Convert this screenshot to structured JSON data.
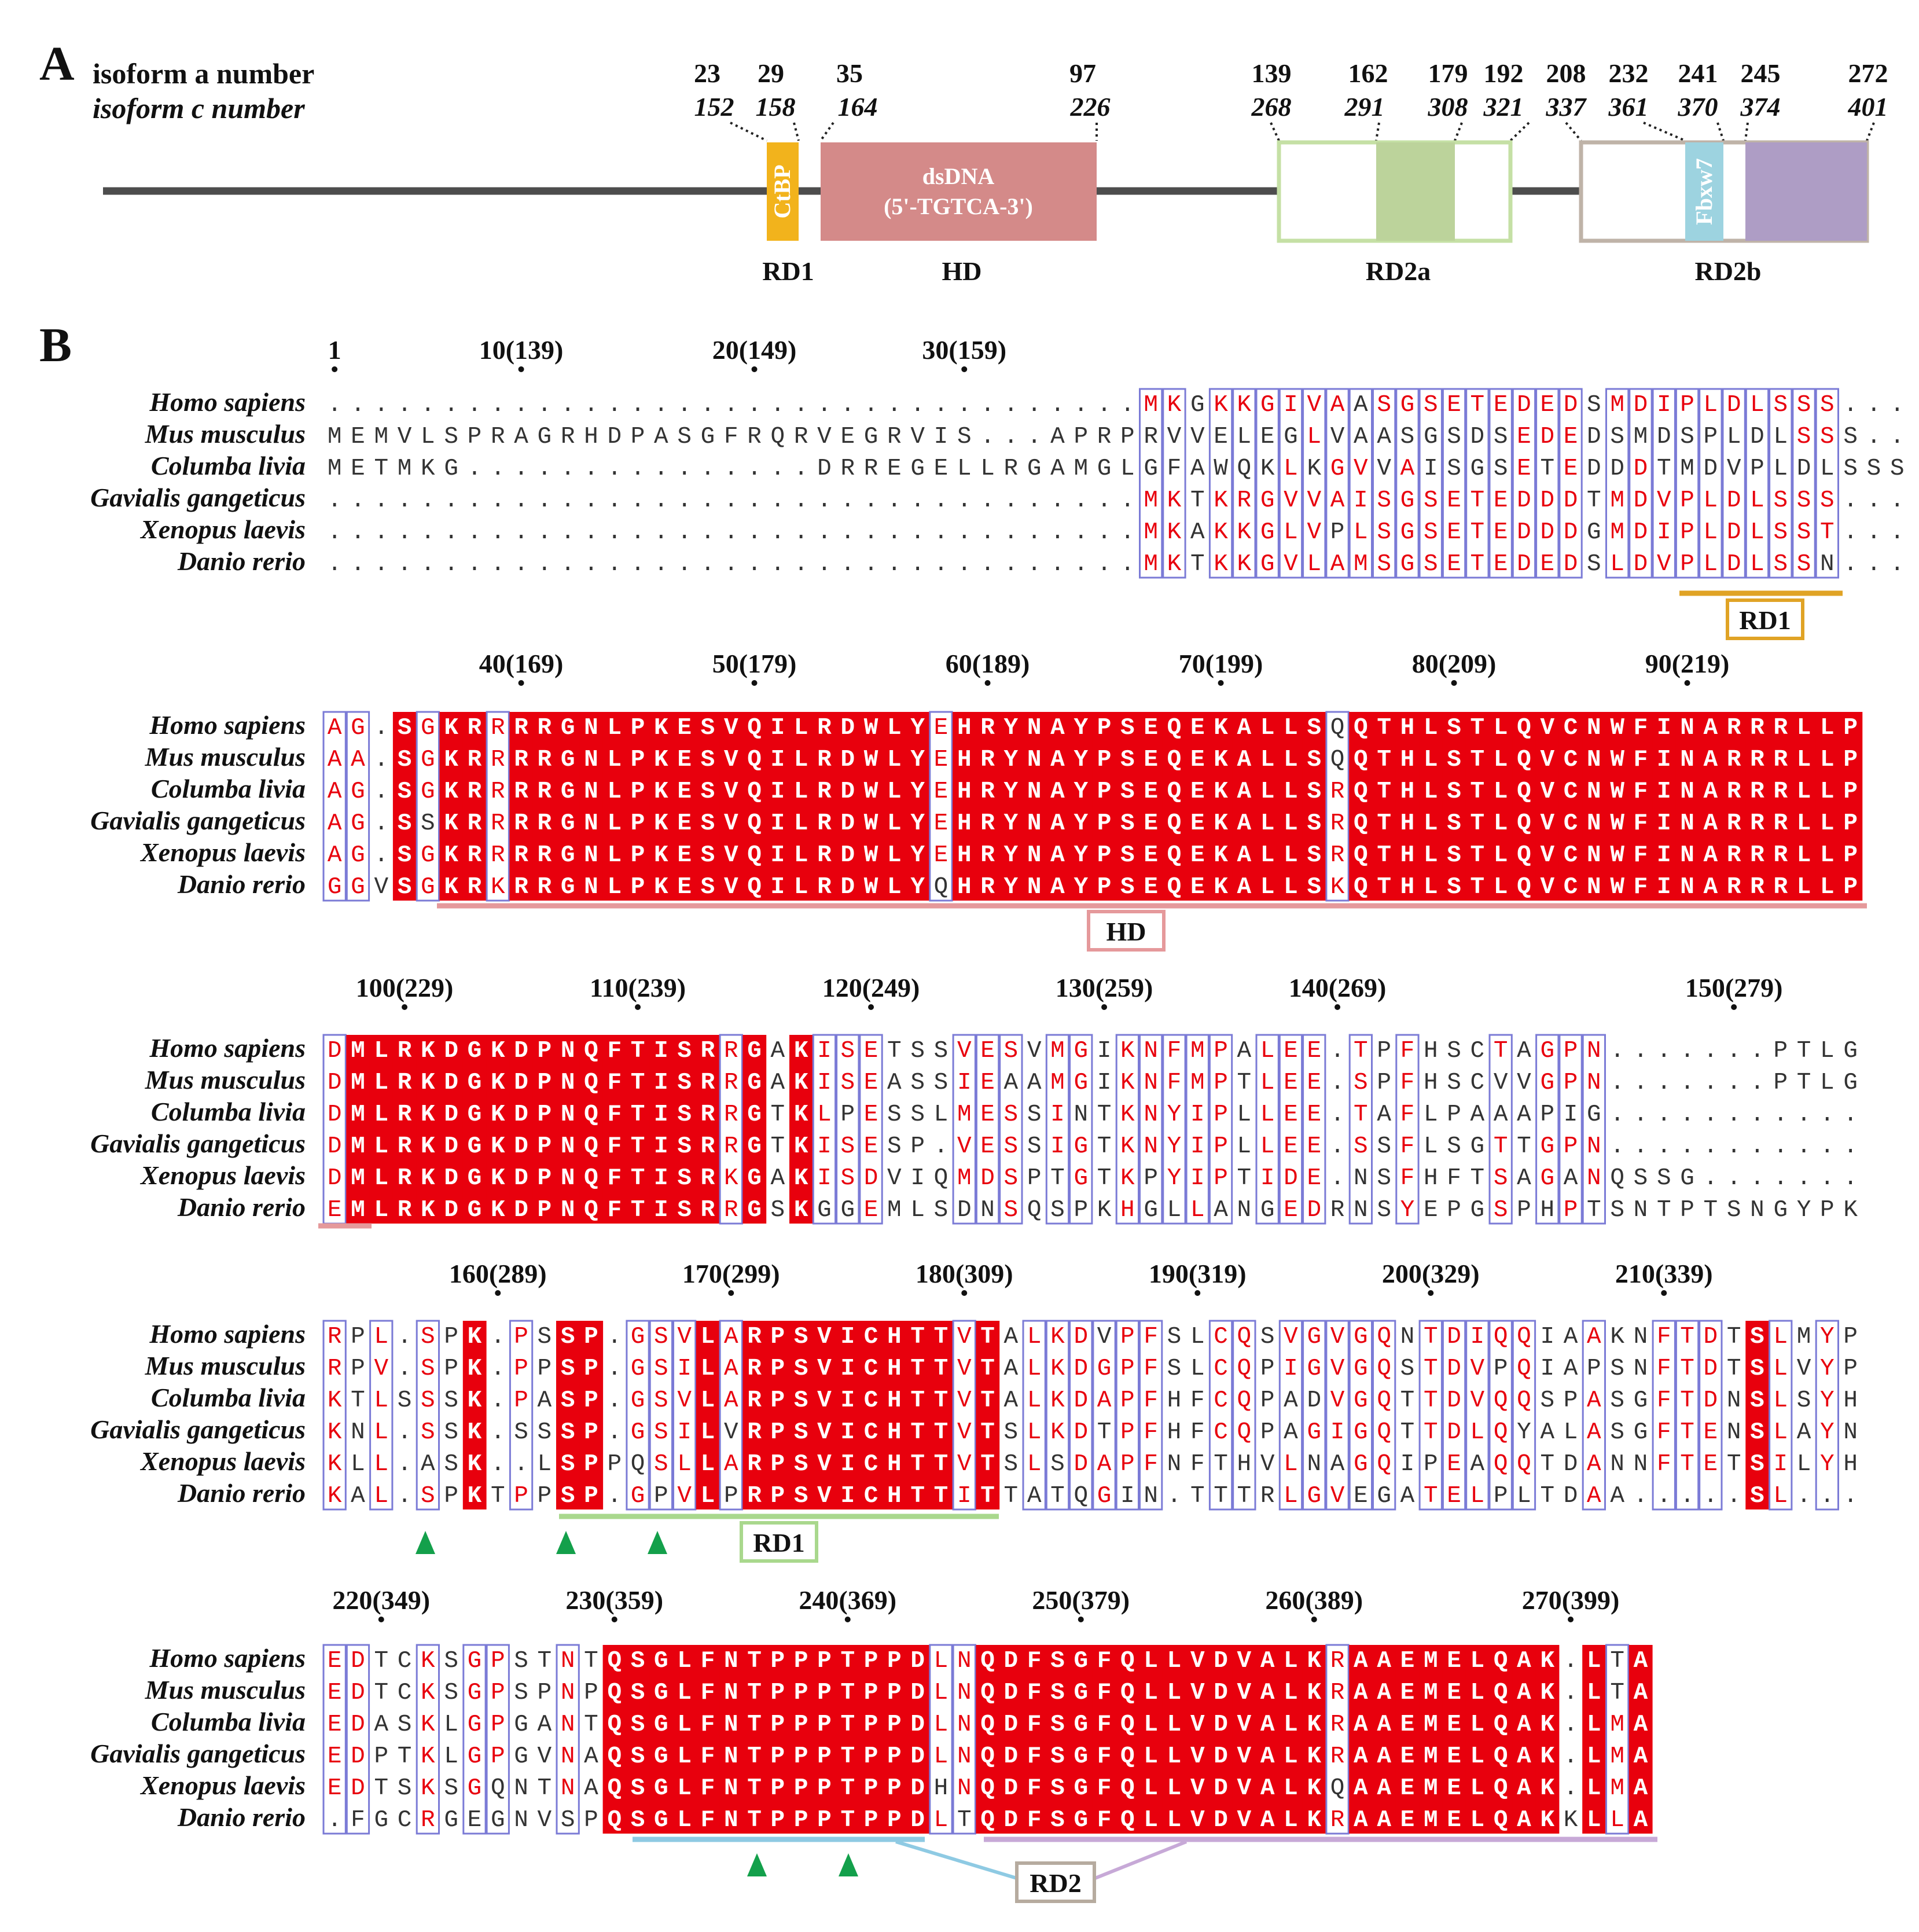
{
  "panel_a": {
    "letter": "A",
    "label_a": "isoform a number",
    "label_c": "isoform c number",
    "iso_a_numbers": [
      "23",
      "29",
      "35",
      "97",
      "139",
      "162",
      "179",
      "192",
      "208",
      "232",
      "241",
      "245",
      "272"
    ],
    "iso_c_numbers": [
      "152",
      "158",
      "164",
      "226",
      "268",
      "291",
      "308",
      "321",
      "337",
      "361",
      "370",
      "374",
      "401"
    ],
    "domains": {
      "ctbp": "CtBP",
      "dsdna_line1": "dsDNA",
      "dsdna_line2": "(5'-TGTCA-3')",
      "fbxw7": "Fbxw7"
    },
    "region_labels": [
      "RD1",
      "HD",
      "RD2a",
      "RD2b"
    ],
    "colors": {
      "ctbp": "#f2b31c",
      "hd": "#d48a89",
      "rd2a_border": "#c5e0a5",
      "rd2a_fill": "#bcd39b",
      "rd2b_border": "#bfb3a8",
      "fbxw7": "#9dd3e0",
      "rd2b_fill": "#ae9dc5",
      "backbone": "#4d4d4d"
    }
  },
  "panel_b": {
    "letter": "B",
    "species": [
      "Homo sapiens",
      "Mus musculus",
      "Columba livia",
      "Gavialis gangeticus",
      "Xenopus laevis",
      "Danio rerio"
    ],
    "blocks": [
      {
        "rows": [
          "...................................MKGKKGIVAASGSETEDEDSMDIPLDLSSS",
          "MEMVLSPRAGRHDPASGFRQRVEGRVIS...APRPRVVELEGLVAASGSDSEDEDSMDSPLDLSSS",
          "METMKG...............DRREGELLRGAMGLGFAWQKLKGVVAISGSETEDDDTMDVPLDLSSS",
          "...................................MKTKRGVVAISGSETEDDDTMDVPLDLSSS",
          "...................................MKAKKGLVPLSGSETEDDDGMDIPLDLSST",
          "...................................MKTKKGVLAMSGSETEDEDSLDVPLDLSSN"
        ],
        "ticks": [
          "1",
          "10(139)",
          "20(149)",
          "30(159)"
        ]
      },
      {
        "rows": [
          "AG.SGKRRRRGNLPKESVQILRDWLYEHRYNAYPSEQEKALLSQQTHLSTLQVCNWFINARRRLLP",
          "AA.SGKRRRRGNLPKESVQILRDWLYEHRYNAYPSEQEKALLSQQTHLSTLQVCNWFINARRRLLP",
          "AG.SGKRRRRGNLPKESVQILRDWLYEHRYNAYPSEQEKALLSRQTHLSTLQVCNWFINARRRLLP",
          "AG.SSKRRRRGNLPKESVQILRDWLYEHRYNAYPSEQEKALLSRQTHLSTLQVCNWFINARRRLLP",
          "AG.SGKRRRRGNLPKESVQILRDWLYEHRYNAYPSEQEKALLSRQTHLSTLQVCNWFINARRRLLP",
          "GGVSGKRKRRGNLPKESVQILRDWLYQHRYNAYPSEQEKALLSKQTHLSTLQVCNWFINARRRLLP"
        ],
        "ticks": [
          "40(169)",
          "50(179)",
          "60(189)",
          "70(199)",
          "80(209)",
          "90(219)"
        ]
      },
      {
        "rows": [
          "DMLRKDGKDPNQFTISRRGAKISETSSVESVMGIKNFMPALEE.TPFHSCTAGPN.......PTLG",
          "DMLRKDGKDPNQFTISRRGAKISEASSIEAAMGIKNFMPTLEE.SPFHSCVVGPN.......PTLG",
          "DMLRKDGKDPNQFTISRRGTKLPESSLMESSINTKNYIPLLEE.TAFLPAAAPIG...........",
          "DMLRKDGKDPNQFTISRRGTKISESP.VESSIGTKNYIPLLEE.SSFLSGTTGPN...........",
          "DMLRKDGKDPNQFTISRKGAKISDVIQMDSPTGTKPYIPTIDE.NSFHFTSAGANQSSG.......",
          "EMLRKDGKDPNQFTISRRGSKGGEMLSDNSQSPKHGLLANGEDRNSYEPGSPHPTSNTPTSNGYPK"
        ],
        "ticks": [
          "100(229)",
          "110(239)",
          "120(249)",
          "130(259)",
          "140(269)",
          "150(279)"
        ]
      },
      {
        "rows": [
          "RPL.SPK.PSSP.GSVLARPSVICHTTVTALKDVPFSLCQSVGVGQNTDIQQIAAKNFTDTSLMYP",
          "RPV.SPK.PPSP.GSILARPSVICHTTVTALKDGPFSLCQPIGVGQSTDVPQIAPSNFTDTSLVYP",
          "KTLSSSK.PASP.GSVLARPSVICHTTVTALKDAPFHFCQPADVGQTTDVQQSPASGFTDNSLSYH",
          "KNL.SSK.SSSP.GSILVRPSVICHTTVTSLKDTPFHFCQPAGIGQTTDLQYALASGFTENSLAYN",
          "KLL.ASK..LSPPQSLLARPSVICHTTVTSLSDAPFNFTHVLNAGQIPEAQQTDANNFTETSILYH",
          "KAL.SPKTPPSP.GPVLPRPSVICHTTITTATQGIN.TTTRLGVEGATELPLTDAA.....SL.."
        ],
        "ticks": [
          "160(289)",
          "170(299)",
          "180(309)",
          "190(319)",
          "200(329)",
          "210(339)"
        ]
      },
      {
        "rows": [
          "EDTCKSGPSTNTQSGLFNTPPPTPPDLNQDFSGFQLLVDVALKRAAEMELQAK.LTA",
          "EDTCKSGPSPNPQSGLFNTPPPTPPDLNQDFSGFQLLVDVALKRAAEMELQAK.LTA",
          "EDASKLGPGANTQSGLFNTPPPTPPDLNQDFSGFQLLVDVALKRAAEMELQAK.LMA",
          "EDPTKLGPGVNAQSGLFNTPPPTPPDLNQDFSGFQLLVDVALKRAAEMELQAK.LMA",
          "EDTSKSGQNTNAQSGLFNTPPPTPPDHNQDFSGFQLLVDVALKQAAEMELQAK.LMA",
          ".FGCRGEGNVSPQSGLFNTPPPTPPDLTQDFSGFQLLVDVALKRAAEMELQAKKLLA"
        ],
        "ticks": [
          "220(349)",
          "230(359)",
          "240(369)",
          "250(379)",
          "260(389)",
          "270(399)"
        ]
      }
    ],
    "annotations": [
      "RD1",
      "HD",
      "RD1",
      "RD2"
    ],
    "colors": {
      "conserved_bg": "#e8000d",
      "conserved_text": "#ffffff",
      "similar_text": "#e8000d",
      "box": "#7b7bd6",
      "normal_text": "#333333",
      "rd1_orange": "#e0a325",
      "hd_pink": "#e5999b",
      "rd1_green": "#a9d88d",
      "rd2_blue": "#8ecae3",
      "rd2_purple": "#c7a9d7",
      "rd2_box": "#b6ab9f",
      "arrow": "#13a04b"
    }
  }
}
